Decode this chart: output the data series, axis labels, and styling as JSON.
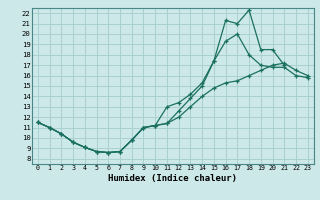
{
  "xlabel": "Humidex (Indice chaleur)",
  "bg_color": "#cde8e8",
  "grid_color": "#aad0d0",
  "line_color": "#1a7060",
  "xlim": [
    -0.5,
    23.5
  ],
  "ylim": [
    7.5,
    22.5
  ],
  "xticks": [
    0,
    1,
    2,
    3,
    4,
    5,
    6,
    7,
    8,
    9,
    10,
    11,
    12,
    13,
    14,
    15,
    16,
    17,
    18,
    19,
    20,
    21,
    22,
    23
  ],
  "yticks": [
    8,
    9,
    10,
    11,
    12,
    13,
    14,
    15,
    16,
    17,
    18,
    19,
    20,
    21,
    22
  ],
  "curve1_x": [
    0,
    1,
    2,
    3,
    4,
    5,
    6,
    7,
    8,
    9,
    10,
    11,
    12,
    13,
    14,
    15,
    16,
    17,
    18,
    19,
    20,
    21,
    22,
    23
  ],
  "curve1_y": [
    11.5,
    11.0,
    10.4,
    9.6,
    9.1,
    8.7,
    8.6,
    8.7,
    9.8,
    11.0,
    11.2,
    11.4,
    12.0,
    13.0,
    14.0,
    14.8,
    15.3,
    15.5,
    16.0,
    16.5,
    17.0,
    17.2,
    16.5,
    16.0
  ],
  "curve2_x": [
    0,
    1,
    2,
    3,
    4,
    5,
    6,
    7,
    8,
    9,
    10,
    11,
    12,
    13,
    14,
    15,
    16,
    17,
    18,
    19,
    20,
    21,
    22,
    23
  ],
  "curve2_y": [
    11.5,
    11.0,
    10.4,
    9.6,
    9.1,
    8.7,
    8.6,
    8.7,
    9.8,
    11.0,
    11.2,
    11.4,
    12.6,
    13.8,
    15.0,
    17.4,
    21.3,
    21.0,
    22.3,
    18.5,
    18.5,
    17.0,
    null,
    null
  ],
  "curve3_x": [
    0,
    1,
    2,
    3,
    4,
    5,
    6,
    7,
    8,
    9,
    10,
    11,
    12,
    13,
    14,
    15,
    16,
    17,
    18,
    19,
    20,
    21,
    22,
    23
  ],
  "curve3_y": [
    11.5,
    11.0,
    10.4,
    9.6,
    9.1,
    8.7,
    8.6,
    8.7,
    9.8,
    11.0,
    11.2,
    13.0,
    13.4,
    14.2,
    15.3,
    17.4,
    19.3,
    20.0,
    18.0,
    17.0,
    16.8,
    16.8,
    16.0,
    15.8
  ]
}
